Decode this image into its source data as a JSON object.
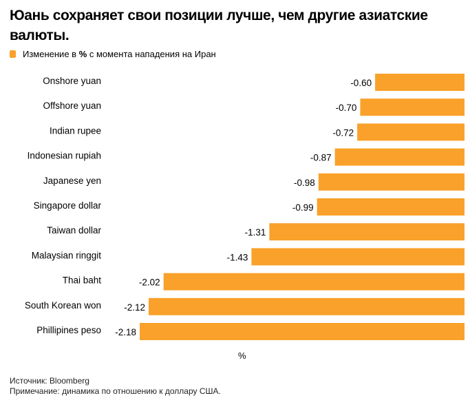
{
  "title": "Юань сохраняет свои позиции лучше, чем другие азиатские валюты.",
  "legend": {
    "label_before": "Изменение в ",
    "label_bold": "%",
    "label_after": " с момента нападения на Иран",
    "color": "#f9a12a"
  },
  "chart_data": {
    "type": "bar",
    "orientation": "horizontal",
    "title": "Юань сохраняет свои позиции лучше, чем другие азиатские валюты.",
    "xlabel": "%",
    "ylabel": "",
    "legend": [
      "Изменение в % с момента нападения на Иран"
    ],
    "legend_position": "top-left",
    "grid": false,
    "xlim": [
      -2.18,
      0
    ],
    "categories": [
      "Onshore yuan",
      "Offshore yuan",
      "Indian rupee",
      "Indonesian rupiah",
      "Japanese yen",
      "Singapore dollar",
      "Taiwan dollar",
      "Malaysian ringgit",
      "Thai baht",
      "South Korean won",
      "Phillipines peso"
    ],
    "values": [
      -0.6,
      -0.7,
      -0.72,
      -0.87,
      -0.98,
      -0.99,
      -1.31,
      -1.43,
      -2.02,
      -2.12,
      -2.18
    ],
    "value_labels": [
      "-0.60",
      "-0.70",
      "-0.72",
      "-0.87",
      "-0.98",
      "-0.99",
      "-1.31",
      "-1.43",
      "-2.02",
      "-2.12",
      "-2.18"
    ],
    "series_color": "#f9a12a"
  },
  "axis_unit": "%",
  "footer": {
    "source": "Источник: Bloomberg",
    "note": "Примечание: динамика по отношению к доллару США."
  }
}
